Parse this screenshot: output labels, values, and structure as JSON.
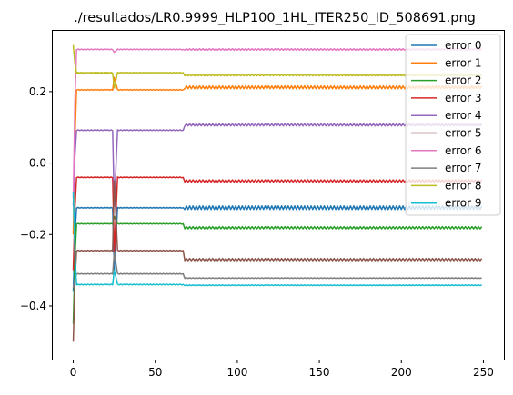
{
  "chart_data": {
    "type": "line",
    "title": "./resultados/LR0.9999_HLP100_1HL_ITER250_ID_508691.png",
    "xlabel": "",
    "ylabel": "",
    "xlim": [
      -12.5,
      262.5
    ],
    "ylim": [
      -0.55,
      0.37
    ],
    "x_ticks": [
      0,
      50,
      100,
      150,
      200,
      250
    ],
    "x_tick_labels": [
      "0",
      "50",
      "100",
      "150",
      "200",
      "250"
    ],
    "y_ticks": [
      -0.4,
      -0.2,
      0.0,
      0.2
    ],
    "y_tick_labels": [
      "−0.4",
      "−0.2",
      "0.0",
      "0.2"
    ],
    "grid": false,
    "legend_position": "top-right",
    "series": [
      {
        "name": "error 0",
        "color": "#1f77b4",
        "start": -0.36,
        "phase1": -0.125,
        "spike25": -0.3,
        "phase2": -0.125,
        "osc": 0.005
      },
      {
        "name": "error 1",
        "color": "#ff7f0e",
        "start": -0.2,
        "phase1": 0.205,
        "spike25": 0.24,
        "phase2": 0.212,
        "osc": 0.004
      },
      {
        "name": "error 2",
        "color": "#2ca02c",
        "start": -0.45,
        "phase1": -0.17,
        "spike25": -0.15,
        "phase2": -0.181,
        "osc": 0.003
      },
      {
        "name": "error 3",
        "color": "#d62728",
        "start": -0.3,
        "phase1": -0.04,
        "spike25": -0.25,
        "phase2": -0.05,
        "osc": 0.003
      },
      {
        "name": "error 4",
        "color": "#9467bd",
        "start": -0.12,
        "phase1": 0.092,
        "spike25": -0.12,
        "phase2": 0.107,
        "osc": 0.003
      },
      {
        "name": "error 5",
        "color": "#8c564b",
        "start": -0.5,
        "phase1": -0.245,
        "spike25": -0.05,
        "phase2": -0.27,
        "osc": 0.003
      },
      {
        "name": "error 6",
        "color": "#e377c2",
        "start": -0.1,
        "phase1": 0.318,
        "spike25": 0.31,
        "phase2": 0.318,
        "osc": 0.002
      },
      {
        "name": "error 7",
        "color": "#7f7f7f",
        "start": -0.35,
        "phase1": -0.31,
        "spike25": -0.25,
        "phase2": -0.322,
        "osc": 0.001
      },
      {
        "name": "error 8",
        "color": "#bcbd22",
        "start": 0.33,
        "phase1": 0.253,
        "spike25": 0.21,
        "phase2": 0.246,
        "osc": 0.002
      },
      {
        "name": "error 9",
        "color": "#17becf",
        "start": -0.08,
        "phase1": -0.34,
        "spike25": -0.3,
        "phase2": -0.342,
        "osc": 0.001
      }
    ],
    "x_max": 249,
    "transition_x": 67,
    "spike_x": 25
  }
}
